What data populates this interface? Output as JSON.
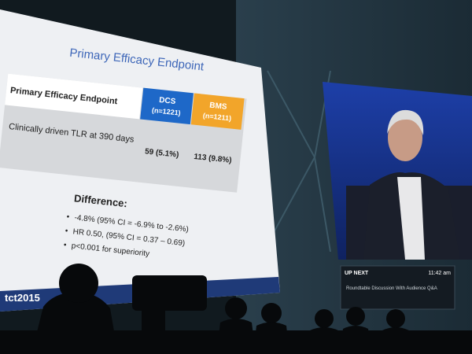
{
  "slide": {
    "title": "Primary Efficacy Endpoint",
    "table": {
      "header": "Primary Efficacy Endpoint",
      "columns": [
        {
          "name": "DCS",
          "n": "(n=1221)"
        },
        {
          "name": "BMS",
          "n": "(n=1211)"
        }
      ],
      "row": {
        "label": "Clinically driven TLR at 390 days",
        "cells": [
          "59 (5.1%)",
          "113 (9.8%)"
        ]
      }
    },
    "difference": {
      "heading": "Difference:",
      "bullets": [
        "-4.8% (95% CI = -6.9% to -2.6%)",
        "HR 0.50, (95% CI = 0.37 – 0.69)",
        "p<0.001 for  superiority"
      ]
    },
    "logo": "tct2015"
  },
  "up_next": {
    "label": "UP NEXT",
    "time": "11:42 am",
    "session": "Roundtable Discussion With Audience Q&A"
  }
}
